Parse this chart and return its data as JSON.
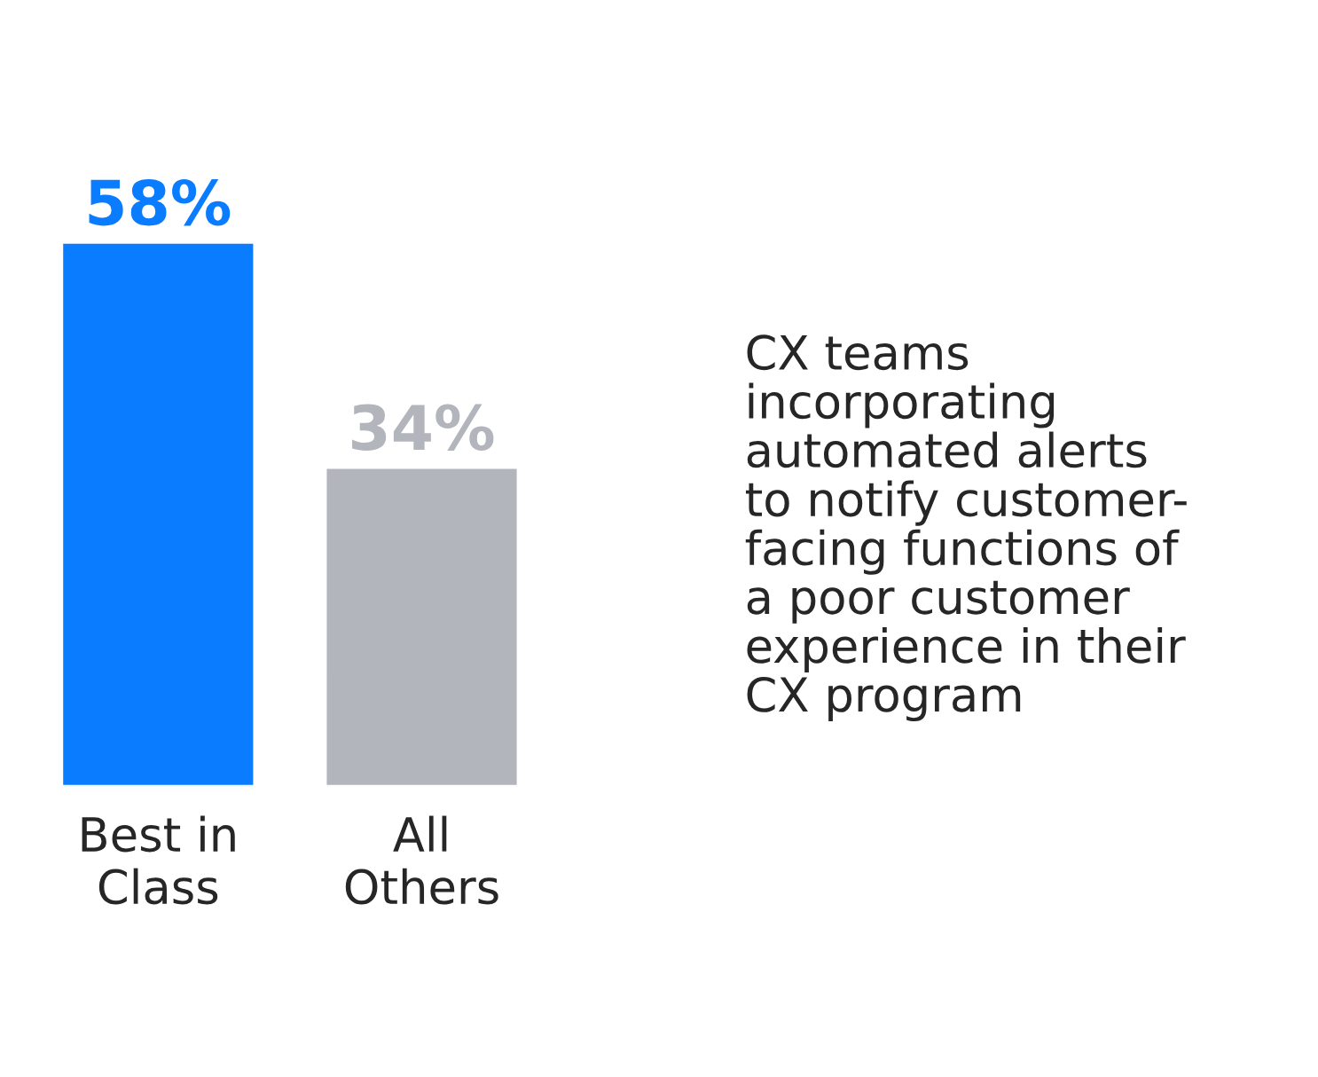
{
  "chart_data": {
    "type": "bar",
    "categories": [
      "Best in\nClass",
      "All\nOthers"
    ],
    "values": [
      58,
      34
    ],
    "colors": [
      "#0a7cff",
      "#b2b5bb"
    ],
    "value_labels": [
      "58%",
      "34%"
    ],
    "annotations": [
      "CX teams\nincorporating\nautomated alerts\nto notify customer-\nfacing functions of\na poor customer\nexperience in their\nCX program"
    ],
    "grid": false,
    "legend": false
  }
}
